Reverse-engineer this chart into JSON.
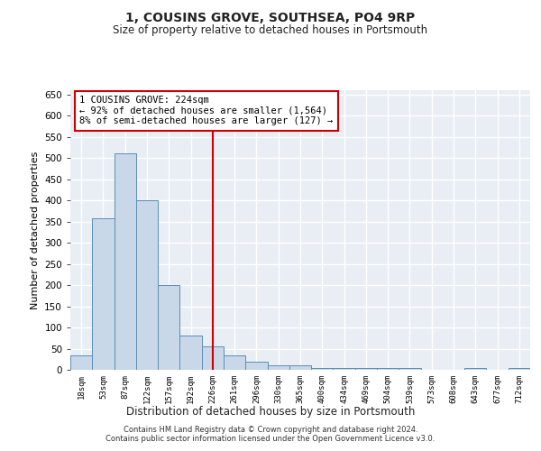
{
  "title": "1, COUSINS GROVE, SOUTHSEA, PO4 9RP",
  "subtitle": "Size of property relative to detached houses in Portsmouth",
  "xlabel": "Distribution of detached houses by size in Portsmouth",
  "ylabel": "Number of detached properties",
  "bar_color": "#c8d8e8",
  "bar_edge_color": "#5b8db8",
  "categories": [
    "18sqm",
    "53sqm",
    "87sqm",
    "122sqm",
    "157sqm",
    "192sqm",
    "226sqm",
    "261sqm",
    "296sqm",
    "330sqm",
    "365sqm",
    "400sqm",
    "434sqm",
    "469sqm",
    "504sqm",
    "539sqm",
    "573sqm",
    "608sqm",
    "643sqm",
    "677sqm",
    "712sqm"
  ],
  "values": [
    35,
    358,
    510,
    400,
    200,
    80,
    55,
    35,
    20,
    10,
    10,
    5,
    5,
    5,
    4,
    4,
    0,
    0,
    5,
    0,
    5
  ],
  "property_line_x": 6,
  "property_line_color": "#cc0000",
  "annotation_text": "1 COUSINS GROVE: 224sqm\n← 92% of detached houses are smaller (1,564)\n8% of semi-detached houses are larger (127) →",
  "annotation_box_color": "#ffffff",
  "annotation_box_edge": "#cc0000",
  "footer1": "Contains HM Land Registry data © Crown copyright and database right 2024.",
  "footer2": "Contains public sector information licensed under the Open Government Licence v3.0.",
  "ylim": [
    0,
    660
  ],
  "yticks": [
    0,
    50,
    100,
    150,
    200,
    250,
    300,
    350,
    400,
    450,
    500,
    550,
    600,
    650
  ],
  "background_color": "#e8eef4",
  "grid_color": "#ffffff",
  "fig_bg": "#ffffff"
}
